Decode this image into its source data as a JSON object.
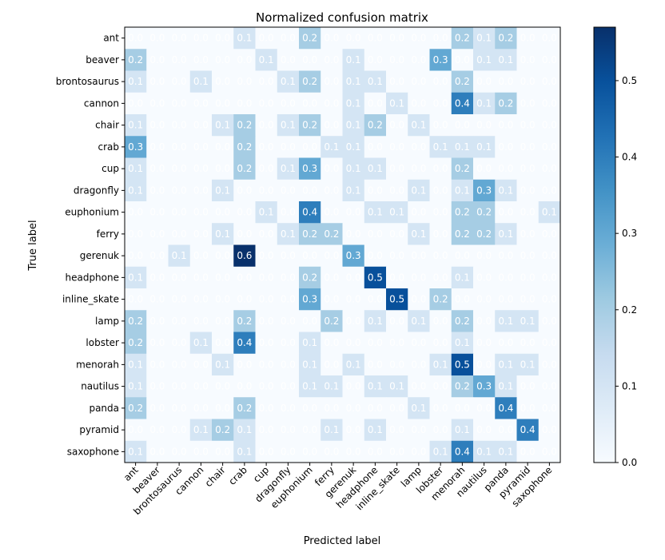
{
  "chart_data": {
    "type": "heatmap",
    "title": "Normalized confusion matrix",
    "xlabel": "Predicted label",
    "ylabel": "True label",
    "labels": [
      "ant",
      "beaver",
      "brontosaurus",
      "cannon",
      "chair",
      "crab",
      "cup",
      "dragonfly",
      "euphonium",
      "ferry",
      "gerenuk",
      "headphone",
      "inline_skate",
      "lamp",
      "lobster",
      "menorah",
      "nautilus",
      "panda",
      "pyramid",
      "saxophone"
    ],
    "matrix": [
      [
        0.0,
        0.0,
        0.0,
        0.0,
        0.0,
        0.1,
        0.0,
        0.0,
        0.2,
        0.0,
        0.0,
        0.0,
        0.0,
        0.0,
        0.0,
        0.2,
        0.1,
        0.2,
        0.0,
        0.0
      ],
      [
        0.2,
        0.0,
        0.0,
        0.0,
        0.0,
        0.0,
        0.1,
        0.0,
        0.0,
        0.0,
        0.1,
        0.0,
        0.0,
        0.0,
        0.3,
        0.0,
        0.1,
        0.1,
        0.0,
        0.0
      ],
      [
        0.1,
        0.0,
        0.0,
        0.1,
        0.0,
        0.0,
        0.0,
        0.1,
        0.2,
        0.0,
        0.1,
        0.1,
        0.0,
        0.0,
        0.0,
        0.2,
        0.0,
        0.0,
        0.0,
        0.0
      ],
      [
        0.0,
        0.0,
        0.0,
        0.0,
        0.0,
        0.0,
        0.0,
        0.0,
        0.0,
        0.0,
        0.1,
        0.0,
        0.1,
        0.0,
        0.0,
        0.4,
        0.1,
        0.2,
        0.0,
        0.0
      ],
      [
        0.1,
        0.0,
        0.0,
        0.0,
        0.1,
        0.2,
        0.0,
        0.1,
        0.2,
        0.0,
        0.1,
        0.2,
        0.0,
        0.1,
        0.0,
        0.0,
        0.0,
        0.0,
        0.0,
        0.0
      ],
      [
        0.3,
        0.0,
        0.0,
        0.0,
        0.0,
        0.2,
        0.0,
        0.0,
        0.0,
        0.1,
        0.1,
        0.0,
        0.0,
        0.0,
        0.1,
        0.1,
        0.1,
        0.0,
        0.0,
        0.0
      ],
      [
        0.1,
        0.0,
        0.0,
        0.0,
        0.0,
        0.2,
        0.0,
        0.1,
        0.3,
        0.0,
        0.1,
        0.1,
        0.0,
        0.0,
        0.0,
        0.2,
        0.0,
        0.0,
        0.0,
        0.0
      ],
      [
        0.1,
        0.0,
        0.0,
        0.0,
        0.1,
        0.0,
        0.0,
        0.0,
        0.0,
        0.0,
        0.1,
        0.0,
        0.0,
        0.1,
        0.0,
        0.1,
        0.3,
        0.1,
        0.0,
        0.0
      ],
      [
        0.0,
        0.0,
        0.0,
        0.0,
        0.0,
        0.0,
        0.1,
        0.0,
        0.4,
        0.0,
        0.0,
        0.1,
        0.1,
        0.0,
        0.0,
        0.2,
        0.2,
        0.0,
        0.0,
        0.1
      ],
      [
        0.0,
        0.0,
        0.0,
        0.0,
        0.1,
        0.0,
        0.0,
        0.1,
        0.2,
        0.2,
        0.0,
        0.0,
        0.0,
        0.1,
        0.0,
        0.2,
        0.2,
        0.1,
        0.0,
        0.0
      ],
      [
        0.0,
        0.0,
        0.1,
        0.0,
        0.0,
        0.6,
        0.0,
        0.0,
        0.0,
        0.0,
        0.3,
        0.0,
        0.0,
        0.0,
        0.0,
        0.0,
        0.0,
        0.0,
        0.0,
        0.0
      ],
      [
        0.1,
        0.0,
        0.0,
        0.0,
        0.0,
        0.0,
        0.0,
        0.0,
        0.2,
        0.0,
        0.0,
        0.5,
        0.0,
        0.0,
        0.0,
        0.1,
        0.0,
        0.0,
        0.0,
        0.0
      ],
      [
        0.0,
        0.0,
        0.0,
        0.0,
        0.0,
        0.0,
        0.0,
        0.0,
        0.3,
        0.0,
        0.0,
        0.0,
        0.5,
        0.0,
        0.2,
        0.0,
        0.0,
        0.0,
        0.0,
        0.0
      ],
      [
        0.2,
        0.0,
        0.0,
        0.0,
        0.0,
        0.2,
        0.0,
        0.0,
        0.0,
        0.2,
        0.0,
        0.1,
        0.0,
        0.1,
        0.0,
        0.2,
        0.0,
        0.1,
        0.1,
        0.0
      ],
      [
        0.2,
        0.0,
        0.0,
        0.1,
        0.0,
        0.4,
        0.0,
        0.0,
        0.1,
        0.0,
        0.0,
        0.0,
        0.0,
        0.0,
        0.0,
        0.1,
        0.0,
        0.0,
        0.0,
        0.0
      ],
      [
        0.1,
        0.0,
        0.0,
        0.0,
        0.1,
        0.0,
        0.0,
        0.0,
        0.1,
        0.0,
        0.1,
        0.0,
        0.0,
        0.0,
        0.1,
        0.5,
        0.0,
        0.1,
        0.1,
        0.0
      ],
      [
        0.1,
        0.0,
        0.0,
        0.0,
        0.0,
        0.0,
        0.0,
        0.0,
        0.1,
        0.1,
        0.0,
        0.1,
        0.1,
        0.0,
        0.0,
        0.2,
        0.3,
        0.1,
        0.0,
        0.0
      ],
      [
        0.2,
        0.0,
        0.0,
        0.0,
        0.0,
        0.2,
        0.0,
        0.0,
        0.0,
        0.0,
        0.0,
        0.0,
        0.0,
        0.1,
        0.0,
        0.0,
        0.0,
        0.4,
        0.0,
        0.0
      ],
      [
        0.0,
        0.0,
        0.0,
        0.1,
        0.2,
        0.1,
        0.0,
        0.0,
        0.0,
        0.1,
        0.0,
        0.1,
        0.0,
        0.0,
        0.0,
        0.1,
        0.0,
        0.0,
        0.4,
        0.0
      ],
      [
        0.1,
        0.0,
        0.0,
        0.0,
        0.0,
        0.1,
        0.0,
        0.0,
        0.0,
        0.0,
        0.0,
        0.0,
        0.0,
        0.0,
        0.1,
        0.4,
        0.1,
        0.1,
        0.0,
        0.0
      ]
    ],
    "colorbar": {
      "range": [
        0.0,
        0.57
      ],
      "ticks": [
        "0.0",
        "0.1",
        "0.2",
        "0.3",
        "0.4",
        "0.5"
      ],
      "colormap": "Blues"
    }
  }
}
